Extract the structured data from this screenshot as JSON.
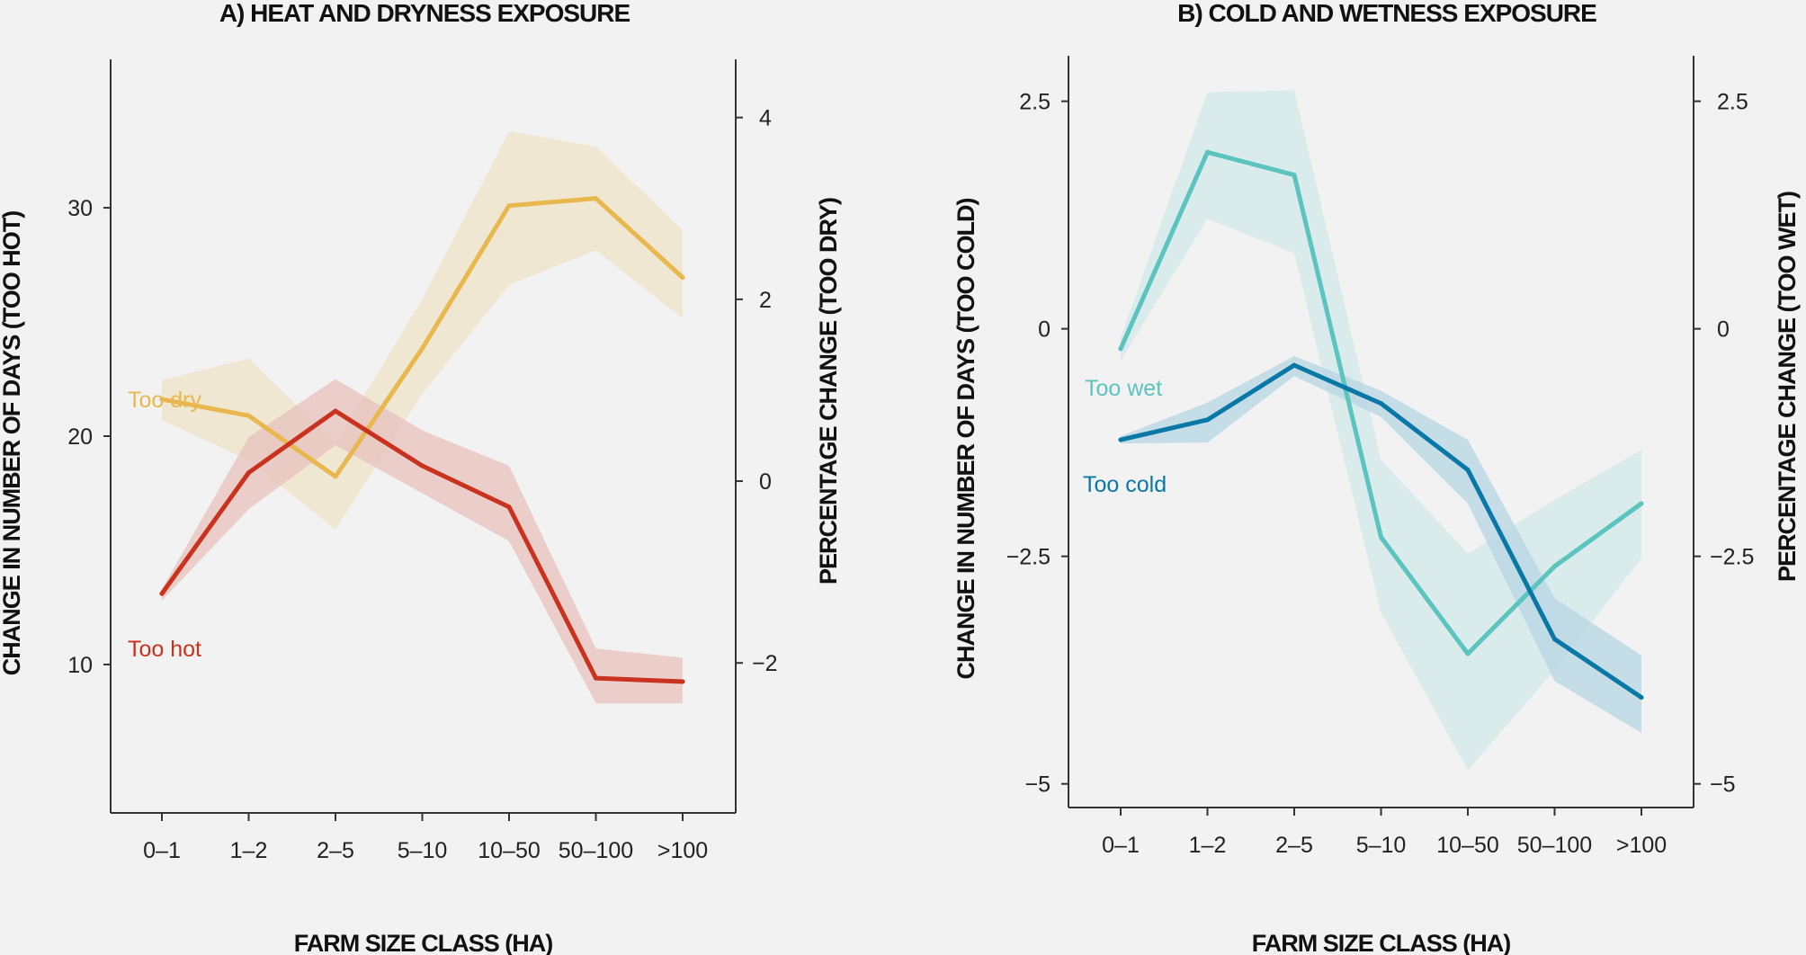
{
  "chart_data": [
    {
      "type": "line",
      "title": "A) HEAT AND DRYNESS EXPOSURE",
      "xlabel": "FARM SIZE CLASS (HA)",
      "ylabel": "CHANGE IN NUMBER OF DAYS (TOO HOT)",
      "y2label": "PERCENTAGE CHANGE (TOO DRY)",
      "categories": [
        "0–1",
        "1–2",
        "2–5",
        "5–10",
        "10–50",
        "50–100",
        ">100"
      ],
      "ylim": [
        3.5,
        36.5
      ],
      "yticks": [
        10,
        20,
        30
      ],
      "ytick_labels": [
        "10",
        "20",
        "30"
      ],
      "y2lim": [
        -3.65,
        4.64
      ],
      "y2ticks": [
        -2,
        0,
        2,
        4
      ],
      "y2tick_labels": [
        "−2",
        "0",
        "2",
        "4"
      ],
      "grid": false,
      "series": [
        {
          "name": "Too dry",
          "axis": "right",
          "color": "#e8b84e",
          "band_color": "#efe3c9",
          "values": [
            0.9,
            0.72,
            0.05,
            1.46,
            3.03,
            3.11,
            2.24
          ],
          "upper": [
            1.11,
            1.35,
            0.42,
            2.0,
            3.85,
            3.68,
            2.76
          ],
          "lower": [
            0.67,
            0.23,
            -0.53,
            0.96,
            2.16,
            2.54,
            1.79
          ]
        },
        {
          "name": "Too hot",
          "axis": "left",
          "color": "#c8321e",
          "band_color": "#e8c4bf",
          "values": [
            13.1,
            18.4,
            21.1,
            18.7,
            16.9,
            9.4,
            9.25
          ],
          "upper": [
            13.3,
            19.95,
            22.5,
            20.25,
            18.7,
            10.7,
            10.3
          ],
          "lower": [
            12.8,
            16.8,
            19.6,
            17.5,
            15.4,
            8.3,
            8.3
          ]
        }
      ]
    },
    {
      "type": "line",
      "title": "B) COLD AND WETNESS EXPOSURE",
      "xlabel": "FARM SIZE CLASS (HA)",
      "ylabel": "CHANGE IN NUMBER OF DAYS (TOO COLD)",
      "y2label": "PERCENTAGE CHANGE (TOO WET)",
      "categories": [
        "0–1",
        "1–2",
        "2–5",
        "5–10",
        "10–50",
        "50–100",
        ">100"
      ],
      "ylim": [
        -5.26,
        3.0
      ],
      "yticks": [
        -5,
        -2.5,
        0,
        2.5
      ],
      "ytick_labels": [
        "−5",
        "−2.5",
        "0",
        "2.5"
      ],
      "y2lim": [
        -5.26,
        3.0
      ],
      "y2ticks": [
        -5,
        -2.5,
        0,
        2.5
      ],
      "y2tick_labels": [
        "−5",
        "−2.5",
        "0",
        "2.5"
      ],
      "grid": false,
      "series": [
        {
          "name": "Too wet",
          "axis": "right",
          "color": "#5bc4bf",
          "band_color": "#d3e9ea",
          "values": [
            -0.22,
            1.94,
            1.69,
            -2.29,
            -3.57,
            -2.61,
            -1.92
          ],
          "upper": [
            -0.1,
            2.6,
            2.62,
            -1.44,
            -2.47,
            -1.88,
            -1.33
          ],
          "lower": [
            -0.35,
            1.21,
            0.83,
            -3.12,
            -4.85,
            -3.75,
            -2.52
          ]
        },
        {
          "name": "Too cold",
          "axis": "left",
          "color": "#0a78a6",
          "band_color": "#b9d7e3",
          "values": [
            -1.22,
            -1.0,
            -0.4,
            -0.82,
            -1.55,
            -3.41,
            -4.05
          ],
          "upper": [
            -1.18,
            -0.81,
            -0.3,
            -0.68,
            -1.22,
            -2.96,
            -3.59
          ],
          "lower": [
            -1.26,
            -1.25,
            -0.52,
            -0.97,
            -1.92,
            -3.87,
            -4.44
          ]
        }
      ]
    }
  ]
}
